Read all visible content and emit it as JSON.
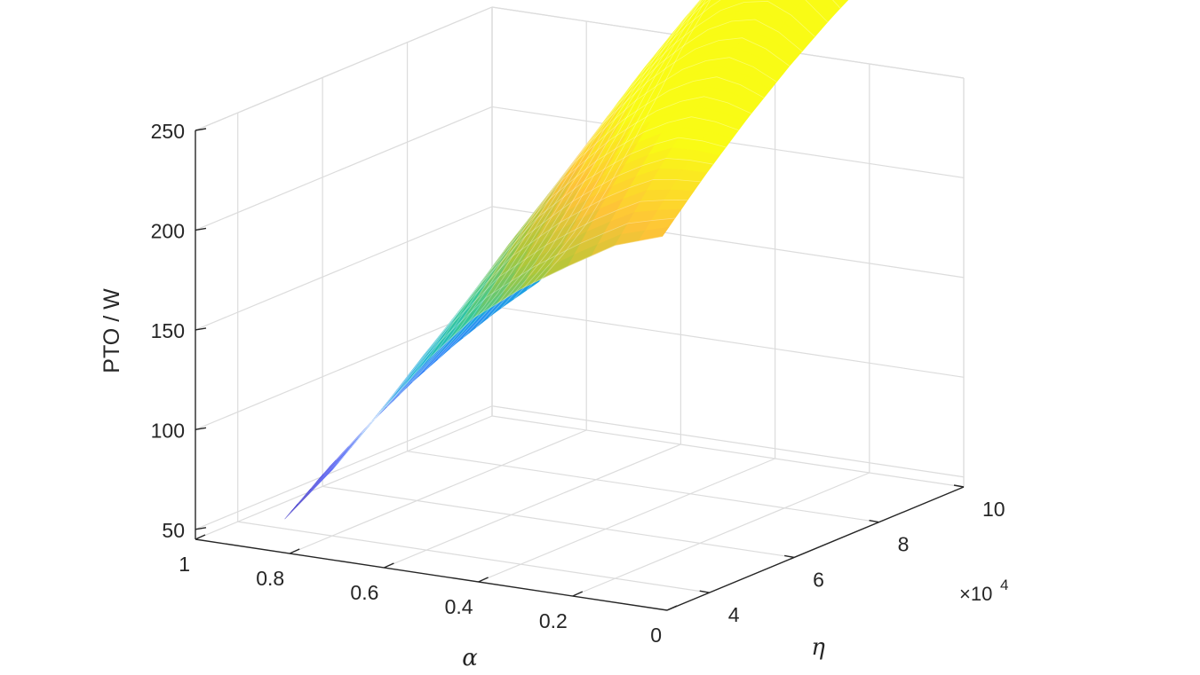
{
  "chart_data": {
    "type": "surface",
    "title": "",
    "xlabel": "α",
    "ylabel": "η",
    "zlabel": "PTO / W",
    "y_exponent_label": "×10",
    "y_exponent_power": "4",
    "xlim": [
      0,
      1
    ],
    "ylim": [
      30000,
      100000
    ],
    "zlim": [
      45,
      250
    ],
    "x_ticks": [
      0,
      0.2,
      0.4,
      0.6,
      0.8,
      1
    ],
    "x_tick_labels": [
      "0",
      "0.2",
      "0.4",
      "0.6",
      "0.8",
      "1"
    ],
    "y_ticks": [
      40000,
      60000,
      80000,
      100000
    ],
    "y_tick_labels": [
      "4",
      "6",
      "8",
      "10"
    ],
    "z_ticks": [
      50,
      100,
      150,
      200,
      250
    ],
    "z_tick_labels": [
      "50",
      "100",
      "150",
      "200",
      "250"
    ],
    "grid": true,
    "colormap": "parula",
    "surface": {
      "alpha": [
        0.9,
        0.8,
        0.7,
        0.6,
        0.5,
        0.4,
        0.3,
        0.2,
        0.1
      ],
      "eta": [
        40000,
        50000,
        60000,
        70000,
        80000,
        90000,
        100000
      ],
      "pto_at_alpha_0_9_by_eta": [
        50,
        66,
        80,
        92,
        102,
        110,
        116
      ],
      "pto_at_eta_40000_by_alpha": [
        50,
        78,
        110,
        140,
        165,
        183,
        198,
        212,
        220
      ]
    }
  }
}
